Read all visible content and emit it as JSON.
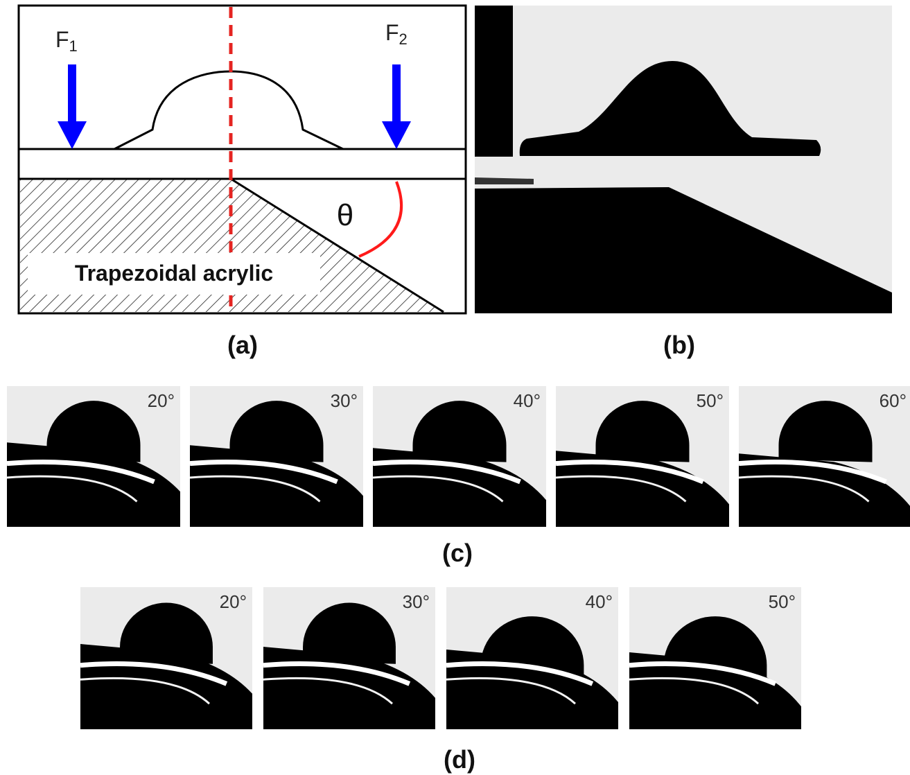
{
  "panel_a": {
    "force_left": {
      "symbol": "F",
      "subscript": "1"
    },
    "force_right": {
      "symbol": "F",
      "subscript": "2"
    },
    "angle_symbol": "θ",
    "substrate_label": "Trapezoidal acrylic",
    "caption": "(a)"
  },
  "panel_b": {
    "caption": "(b)"
  },
  "panel_c": {
    "angles": [
      "20°",
      "30°",
      "40°",
      "50°",
      "60°"
    ],
    "caption": "(c)"
  },
  "panel_d": {
    "angles": [
      "20°",
      "30°",
      "40°",
      "50°"
    ],
    "caption": "(d)"
  }
}
